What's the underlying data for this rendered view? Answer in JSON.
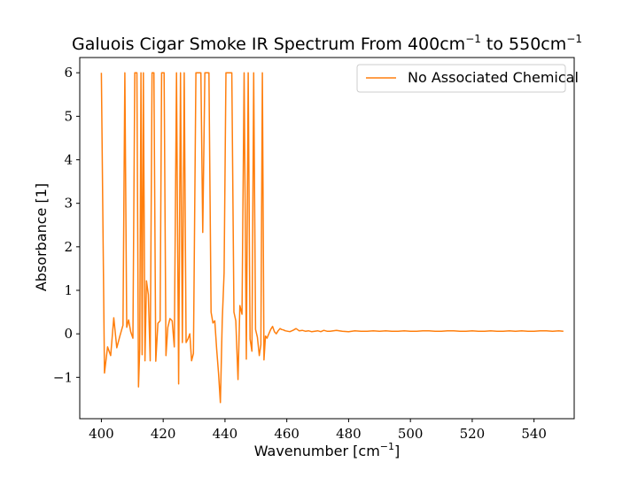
{
  "chart_data": {
    "type": "line",
    "title_main": "Galuois Cigar Smoke IR Spectrum From 400cm",
    "title_sup1": "−1",
    "title_mid": " to 550cm",
    "title_sup2": "−1",
    "xlabel_main": "Wavenumber [cm",
    "xlabel_sup": "−1",
    "xlabel_end": "]",
    "ylabel": "Absorbance [1]",
    "xlim": [
      393,
      553
    ],
    "ylim": [
      -1.95,
      6.35
    ],
    "x_ticks": [
      400,
      420,
      440,
      460,
      480,
      500,
      520,
      540
    ],
    "y_ticks": [
      -1,
      0,
      1,
      2,
      3,
      4,
      5,
      6
    ],
    "y_tick_labels": [
      "−1",
      "0",
      "1",
      "2",
      "3",
      "4",
      "5",
      "6"
    ],
    "legend_position": "top-right",
    "series": [
      {
        "name": "No Associated Chemical",
        "color": "#ff7f0e",
        "x": [
          400,
          401,
          402,
          403,
          404,
          405,
          406,
          407,
          407.6,
          408.2,
          408.8,
          409.5,
          410.2,
          410.8,
          411.5,
          412,
          412.4,
          412.8,
          413.2,
          413.6,
          414.1,
          414.6,
          415.2,
          415.8,
          416.4,
          417,
          417.6,
          418.3,
          419,
          419.5,
          420.3,
          420.9,
          421.5,
          422.2,
          422.9,
          423.6,
          424.3,
          425,
          425.6,
          426.2,
          426.8,
          427.4,
          428,
          428.6,
          429.2,
          429.8,
          430.6,
          431.4,
          432.2,
          432.8,
          433.5,
          434.2,
          434.8,
          435.5,
          436.1,
          436.7,
          437.3,
          437.9,
          438.5,
          439.1,
          439.7,
          440.3,
          440.9,
          441.5,
          442.2,
          442.9,
          443.5,
          444.2,
          444.8,
          445.5,
          446.2,
          446.9,
          447.5,
          448.1,
          448.7,
          449.3,
          449.9,
          450.5,
          451.1,
          451.6,
          452.1,
          452.6,
          453.1,
          453.6,
          454.2,
          454.8,
          455.4,
          456,
          456.6,
          457.2,
          457.8,
          458.3,
          458.9,
          459.5,
          460.2,
          461,
          462,
          463,
          464,
          465,
          466,
          467,
          468,
          469,
          470,
          471,
          472,
          473,
          474,
          475,
          476,
          477,
          478,
          480,
          482,
          484,
          486,
          488,
          490,
          492,
          494,
          496,
          498,
          500,
          502,
          504,
          506,
          508,
          510,
          512,
          514,
          516,
          518,
          520,
          522,
          524,
          526,
          528,
          530,
          532,
          534,
          536,
          538,
          540,
          542,
          544,
          546,
          548,
          549.5
        ],
        "y": [
          6,
          -0.9,
          -0.3,
          -0.5,
          0.37,
          -0.32,
          -0.05,
          0.2,
          6,
          0.15,
          0.32,
          0.05,
          -0.1,
          6,
          6,
          -1.22,
          -0.35,
          6,
          -0.48,
          6,
          -0.62,
          1.22,
          0.9,
          -0.62,
          6,
          6,
          -0.63,
          0.24,
          0.3,
          6,
          6,
          -0.5,
          0.15,
          0.35,
          0.3,
          -0.3,
          6,
          -1.15,
          6,
          -0.2,
          6,
          -0.2,
          -0.12,
          0.0,
          -0.62,
          -0.45,
          6,
          6,
          6,
          2.33,
          6,
          6,
          6,
          0.5,
          0.25,
          0.3,
          -0.35,
          -0.9,
          -1.58,
          0.3,
          1.4,
          6,
          6,
          6,
          6,
          0.5,
          0.3,
          -1.05,
          0.65,
          0.45,
          6,
          -0.58,
          6,
          -0.12,
          -0.4,
          6,
          0.1,
          -0.08,
          -0.5,
          -0.25,
          6,
          -0.6,
          -0.05,
          -0.1,
          0.0,
          0.1,
          0.17,
          0.05,
          0.0,
          0.07,
          0.12,
          0.1,
          0.09,
          0.07,
          0.06,
          0.05,
          0.08,
          0.12,
          0.07,
          0.08,
          0.06,
          0.07,
          0.05,
          0.06,
          0.07,
          0.05,
          0.08,
          0.06,
          0.06,
          0.07,
          0.08,
          0.07,
          0.06,
          0.05,
          0.07,
          0.06,
          0.06,
          0.07,
          0.06,
          0.07,
          0.06,
          0.06,
          0.07,
          0.06,
          0.06,
          0.07,
          0.07,
          0.06,
          0.06,
          0.07,
          0.07,
          0.06,
          0.06,
          0.07,
          0.06,
          0.06,
          0.07,
          0.06,
          0.06,
          0.07,
          0.06,
          0.07,
          0.06,
          0.06,
          0.07,
          0.07,
          0.06,
          0.07,
          0.06
        ]
      }
    ]
  }
}
